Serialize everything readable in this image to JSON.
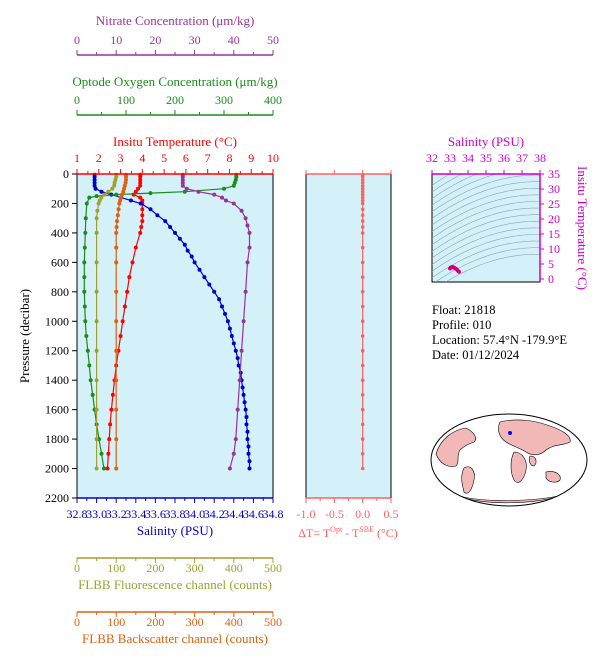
{
  "float_info": {
    "float": "Float:  21818",
    "profile": "Profile:  010",
    "location": "Location:  57.4°N  -179.9°E",
    "date": "Date:  01/12/2024"
  },
  "colors": {
    "temperature": "#ff0000",
    "salinity": "#0000cc",
    "oxygen": "#1a8c1a",
    "nitrate": "#993399",
    "fluorescence": "#a0a030",
    "backscatter": "#e06010",
    "delta_t": "#ff6060",
    "ts_axis": "#cc00cc",
    "plot_bg": "#d4f0f8"
  },
  "chart_data": [
    {
      "type": "line",
      "panel": "profile",
      "y_axis": {
        "label": "Pressure (decibar)",
        "lim": [
          2200,
          0
        ],
        "ticks": [
          0,
          200,
          400,
          600,
          800,
          1000,
          1200,
          1400,
          1600,
          1800,
          2000,
          2200
        ]
      },
      "axes": {
        "temperature": {
          "title": "Insitu Temperature (°C)",
          "lim": [
            1,
            10
          ],
          "ticks": [
            "1",
            "2",
            "3",
            "4",
            "5",
            "6",
            "7",
            "8",
            "9",
            "10"
          ]
        },
        "salinity": {
          "title": "Salinity (PSU)",
          "lim": [
            32.8,
            34.8
          ],
          "ticks": [
            "32.8",
            "33.0",
            "33.2",
            "33.4",
            "33.6",
            "33.8",
            "34.0",
            "34.2",
            "34.4",
            "34.6",
            "34.8"
          ]
        },
        "oxygen": {
          "title": "Optode Oxygen Concentration (μm/kg)",
          "lim": [
            0,
            400
          ],
          "ticks": [
            "0",
            "100",
            "200",
            "300",
            "400"
          ]
        },
        "nitrate": {
          "title": "Nitrate Concentration (μm/kg)",
          "lim": [
            0,
            50
          ],
          "ticks": [
            "0",
            "10",
            "20",
            "30",
            "40",
            "50"
          ]
        },
        "fluorescence": {
          "title": "FLBB Fluorescence channel (counts)",
          "lim": [
            0,
            500
          ],
          "ticks": [
            "0",
            "100",
            "200",
            "300",
            "400",
            "500"
          ]
        },
        "backscatter": {
          "title": "FLBB Backscatter channel (counts)",
          "lim": [
            0,
            500
          ],
          "ticks": [
            "0",
            "100",
            "200",
            "300",
            "400",
            "500"
          ]
        }
      },
      "series": [
        {
          "key": "temperature",
          "axis": "temperature",
          "p": [
            5,
            20,
            40,
            60,
            80,
            100,
            120,
            140,
            160,
            180,
            200,
            240,
            280,
            320,
            360,
            400,
            500,
            600,
            700,
            800,
            900,
            1000,
            1100,
            1200,
            1300,
            1400,
            1500,
            1600,
            1700,
            1800,
            1900,
            2000
          ],
          "v": [
            3.9,
            3.9,
            3.9,
            3.9,
            3.9,
            3.8,
            3.7,
            3.6,
            3.9,
            4.0,
            4.0,
            4.0,
            4.0,
            4.0,
            3.95,
            3.9,
            3.7,
            3.55,
            3.4,
            3.3,
            3.2,
            3.1,
            3.0,
            2.9,
            2.8,
            2.72,
            2.65,
            2.58,
            2.52,
            2.48,
            2.44,
            2.4
          ]
        },
        {
          "key": "salinity",
          "axis": "salinity",
          "p": [
            5,
            20,
            40,
            60,
            80,
            100,
            120,
            140,
            160,
            180,
            200,
            240,
            280,
            320,
            360,
            400,
            440,
            480,
            520,
            560,
            600,
            650,
            700,
            750,
            800,
            850,
            900,
            950,
            1000,
            1050,
            1100,
            1150,
            1200,
            1250,
            1300,
            1350,
            1400,
            1450,
            1500,
            1550,
            1600,
            1650,
            1700,
            1750,
            1800,
            1850,
            1900,
            1950,
            2000
          ],
          "v": [
            32.98,
            32.98,
            32.98,
            32.98,
            32.98,
            32.99,
            33.05,
            33.15,
            33.25,
            33.35,
            33.45,
            33.55,
            33.62,
            33.7,
            33.75,
            33.8,
            33.85,
            33.9,
            33.93,
            33.97,
            34.0,
            34.05,
            34.1,
            34.15,
            34.2,
            34.25,
            34.28,
            34.31,
            34.34,
            34.36,
            34.38,
            34.4,
            34.42,
            34.44,
            34.45,
            34.47,
            34.48,
            34.49,
            34.5,
            34.51,
            34.52,
            34.53,
            34.53,
            34.54,
            34.54,
            34.55,
            34.55,
            34.56,
            34.56
          ]
        },
        {
          "key": "oxygen",
          "axis": "oxygen",
          "p": [
            5,
            20,
            40,
            60,
            80,
            100,
            120,
            130,
            140,
            150,
            160,
            200,
            300,
            400,
            500,
            600,
            700,
            800,
            900,
            1000,
            1100,
            1200,
            1300,
            1400,
            1500,
            1600,
            1700,
            1800,
            1900,
            2000
          ],
          "v": [
            325,
            325,
            324,
            322,
            320,
            300,
            220,
            150,
            80,
            40,
            25,
            20,
            18,
            17,
            16,
            15,
            15,
            15,
            16,
            17,
            19,
            22,
            25,
            28,
            32,
            36,
            40,
            45,
            50,
            55
          ]
        },
        {
          "key": "nitrate",
          "axis": "nitrate",
          "p": [
            5,
            20,
            40,
            60,
            80,
            100,
            120,
            140,
            160,
            180,
            200,
            250,
            300,
            350,
            400,
            500,
            600,
            800,
            1000,
            1200,
            1400,
            1600,
            1800,
            1900,
            2000
          ],
          "v": [
            27,
            27,
            27,
            27,
            27,
            28,
            31,
            35,
            37,
            38,
            40,
            42,
            43,
            43.5,
            44,
            44,
            43.5,
            43,
            42.5,
            42,
            41.5,
            41,
            40.5,
            40,
            39
          ]
        },
        {
          "key": "fluorescence",
          "axis": "fluorescence",
          "p": [
            5,
            20,
            40,
            60,
            80,
            100,
            120,
            140,
            160,
            180,
            200,
            250,
            300,
            400,
            600,
            800,
            1000,
            1200,
            1400,
            1600,
            1800,
            2000
          ],
          "v": [
            100,
            100,
            98,
            96,
            95,
            90,
            80,
            70,
            62,
            58,
            55,
            52,
            50,
            50,
            50,
            50,
            50,
            50,
            50,
            50,
            50,
            50
          ]
        },
        {
          "key": "backscatter",
          "axis": "backscatter",
          "p": [
            5,
            20,
            40,
            60,
            80,
            100,
            120,
            140,
            160,
            180,
            200,
            240,
            280,
            320,
            360,
            400,
            500,
            600,
            800,
            1000,
            1200,
            1400,
            1600,
            1800,
            2000
          ],
          "v": [
            125,
            125,
            125,
            124,
            122,
            120,
            118,
            115,
            112,
            110,
            108,
            106,
            104,
            102,
            101,
            100,
            100,
            100,
            100,
            100,
            100,
            100,
            100,
            100,
            100
          ]
        }
      ]
    },
    {
      "type": "line",
      "panel": "delta_t",
      "x_axis": {
        "title": "ΔT= TOpt - TSBE (°C)",
        "lim": [
          -1.0,
          0.5
        ],
        "ticks": [
          "-1.0",
          "-0.5",
          "0.0",
          "0.5"
        ]
      },
      "series": [
        {
          "key": "delta_t",
          "p": [
            5,
            20,
            40,
            60,
            80,
            100,
            120,
            140,
            160,
            180,
            200,
            240,
            280,
            320,
            360,
            400,
            500,
            600,
            700,
            800,
            900,
            1000,
            1100,
            1200,
            1300,
            1400,
            1500,
            1600,
            1700,
            1800,
            1900,
            2000
          ],
          "v": [
            0.0,
            0.0,
            0.0,
            0.0,
            0.0,
            0.0,
            0.0,
            0.0,
            0.0,
            0.0,
            0.0,
            0.0,
            0.0,
            0.0,
            0.0,
            0.0,
            0.0,
            0.0,
            0.0,
            0.0,
            0.0,
            0.0,
            0.0,
            0.0,
            0.0,
            0.0,
            0.0,
            0.0,
            0.0,
            0.0,
            0.0,
            0.0
          ]
        }
      ]
    },
    {
      "type": "scatter",
      "panel": "ts_diagram",
      "x_axis": {
        "title": "Salinity (PSU)",
        "lim": [
          32,
          38
        ],
        "ticks": [
          "32",
          "33",
          "34",
          "35",
          "36",
          "37",
          "38"
        ]
      },
      "y_axis": {
        "title": "Insitu Temperature (°C)",
        "lim": [
          -1,
          35
        ],
        "ticks": [
          "0",
          "5",
          "10",
          "15",
          "20",
          "25",
          "30",
          "35"
        ]
      },
      "points": {
        "s": [
          33.0,
          33.02,
          33.05,
          33.08,
          33.1,
          33.12,
          33.15,
          33.2,
          33.25,
          33.3,
          33.35,
          33.4,
          33.45,
          33.5
        ],
        "t": [
          3.5,
          3.7,
          3.85,
          3.9,
          3.95,
          4.0,
          4.0,
          3.9,
          3.7,
          3.5,
          3.3,
          3.0,
          2.7,
          2.4
        ]
      }
    }
  ]
}
